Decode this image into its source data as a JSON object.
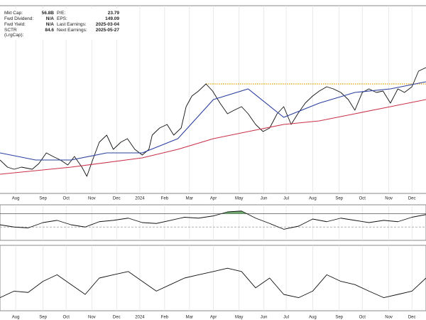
{
  "stats": [
    {
      "label": "Mkt Cap:",
      "value": "56.8B"
    },
    {
      "label": "P/E:",
      "value": "23.79"
    },
    {
      "label": "Fwd Dividend:",
      "value": "N/A"
    },
    {
      "label": "EPS:",
      "value": "149.09"
    },
    {
      "label": "Fwd Yield:",
      "value": "N/A"
    },
    {
      "label": "Last Earnings:",
      "value": "2025-03-04"
    },
    {
      "label": "SCTR (LrgCap):",
      "value": "84.6"
    },
    {
      "label": "Next Earnings:",
      "value": "2025-05-27"
    }
  ],
  "chart_data": [
    {
      "type": "line",
      "xlim": [
        0,
        515
      ],
      "ylim": [
        15,
        150
      ],
      "xticks": [
        {
          "value": 19,
          "label": "Aug"
        },
        {
          "value": 52,
          "label": "Sep"
        },
        {
          "value": 80,
          "label": "Oct"
        },
        {
          "value": 111,
          "label": "Nov"
        },
        {
          "value": 141,
          "label": "Dec"
        },
        {
          "value": 169,
          "label": "2024"
        },
        {
          "value": 199,
          "label": "Feb"
        },
        {
          "value": 229,
          "label": "Mar"
        },
        {
          "value": 258,
          "label": "Apr"
        },
        {
          "value": 289,
          "label": "May"
        },
        {
          "value": 319,
          "label": "Jun"
        },
        {
          "value": 346,
          "label": "Jul"
        },
        {
          "value": 378,
          "label": "Aug"
        },
        {
          "value": 410,
          "label": "Sep"
        },
        {
          "value": 438,
          "label": "Oct"
        },
        {
          "value": 470,
          "label": "Nov"
        },
        {
          "value": 498,
          "label": "Dec"
        }
      ],
      "grid": true,
      "series": [
        {
          "color": "#111111",
          "x": [
            0,
            9,
            17,
            26,
            39,
            47,
            56,
            64,
            73,
            82,
            90,
            99,
            105,
            112,
            120,
            129,
            137,
            146,
            154,
            163,
            172,
            180,
            184,
            193,
            202,
            210,
            219,
            225,
            232,
            240,
            249,
            257,
            266,
            275,
            283,
            292,
            300,
            309,
            318,
            326,
            335,
            343,
            352,
            360,
            369,
            378,
            386,
            395,
            403,
            412,
            421,
            429,
            438,
            446,
            455,
            463,
            472,
            481,
            489,
            498,
            506,
            515
          ],
          "values": [
            37.5,
            32.5,
            31,
            32.5,
            31,
            35,
            42.5,
            40,
            37.5,
            34,
            40,
            32.5,
            26,
            37.5,
            50,
            55,
            45,
            50,
            52.5,
            45,
            41,
            45,
            55,
            60,
            62.5,
            55,
            60,
            75,
            82.5,
            86,
            91,
            86,
            77.5,
            70,
            72.5,
            75,
            70,
            62.5,
            57.5,
            60,
            70,
            75,
            62.5,
            70,
            77.5,
            82.5,
            86,
            89,
            87.5,
            85,
            80,
            72.5,
            85,
            87.5,
            85,
            86,
            77.5,
            87.5,
            85,
            89,
            100,
            102.5
          ]
        },
        {
          "color": "#2b3f9e",
          "x": [
            0,
            43,
            86,
            129,
            172,
            215,
            258,
            300,
            343,
            386,
            429,
            472,
            515
          ],
          "values": [
            42.5,
            37.5,
            37.5,
            42.5,
            42.5,
            52.5,
            80,
            87.5,
            67.5,
            77.5,
            85,
            87.5,
            92.5
          ]
        },
        {
          "color": "#c8324a",
          "x": [
            0,
            86,
            172,
            215,
            258,
            300,
            343,
            386,
            429,
            472,
            515
          ],
          "values": [
            27.5,
            32.5,
            39,
            45,
            52.5,
            57.5,
            62.5,
            65,
            70,
            75,
            80
          ]
        }
      ],
      "reference_lines": [
        {
          "value": 91,
          "x": [
            249,
            515
          ],
          "color": "#e0a000"
        }
      ]
    },
    {
      "type": "line",
      "xlim": [
        0,
        515
      ],
      "ylim": [
        10,
        90
      ],
      "levels": [
        70,
        40
      ],
      "overbought_fill": "#4f9a50",
      "series": [
        {
          "color": "#111111",
          "x": [
            0,
            17,
            34,
            52,
            69,
            86,
            103,
            120,
            137,
            155,
            172,
            189,
            206,
            223,
            240,
            258,
            275,
            292,
            309,
            326,
            343,
            361,
            378,
            395,
            412,
            429,
            446,
            464,
            481,
            498,
            515
          ],
          "values": [
            45,
            40,
            38,
            50,
            55,
            45,
            40,
            52,
            55,
            60,
            50,
            48,
            55,
            62,
            60,
            65,
            74,
            76,
            60,
            48,
            35,
            42,
            58,
            52,
            60,
            55,
            50,
            55,
            52,
            62,
            68
          ]
        }
      ]
    },
    {
      "type": "line",
      "xlim": [
        0,
        515
      ],
      "ylim": [
        0,
        100
      ],
      "xticks": [
        {
          "value": 19,
          "label": "Aug"
        },
        {
          "value": 52,
          "label": "Sep"
        },
        {
          "value": 80,
          "label": "Oct"
        },
        {
          "value": 111,
          "label": "Nov"
        },
        {
          "value": 141,
          "label": "Dec"
        },
        {
          "value": 169,
          "label": "2024"
        },
        {
          "value": 199,
          "label": "Feb"
        },
        {
          "value": 229,
          "label": "Mar"
        },
        {
          "value": 258,
          "label": "Apr"
        },
        {
          "value": 289,
          "label": "May"
        },
        {
          "value": 319,
          "label": "Jun"
        },
        {
          "value": 346,
          "label": "Jul"
        },
        {
          "value": 378,
          "label": "Aug"
        },
        {
          "value": 410,
          "label": "Sep"
        },
        {
          "value": 438,
          "label": "Oct"
        },
        {
          "value": 470,
          "label": "Nov"
        },
        {
          "value": 498,
          "label": "Dec"
        }
      ],
      "grid": true,
      "series": [
        {
          "color": "#111111",
          "x": [
            0,
            17,
            34,
            52,
            69,
            86,
            103,
            120,
            137,
            155,
            172,
            189,
            206,
            223,
            240,
            258,
            275,
            292,
            309,
            326,
            343,
            361,
            378,
            395,
            412,
            429,
            446,
            464,
            481,
            498,
            515
          ],
          "values": [
            20,
            30,
            28,
            45,
            55,
            40,
            25,
            50,
            55,
            60,
            45,
            30,
            40,
            50,
            55,
            60,
            65,
            60,
            35,
            50,
            25,
            20,
            30,
            55,
            45,
            40,
            30,
            20,
            25,
            30,
            50
          ]
        }
      ]
    }
  ]
}
